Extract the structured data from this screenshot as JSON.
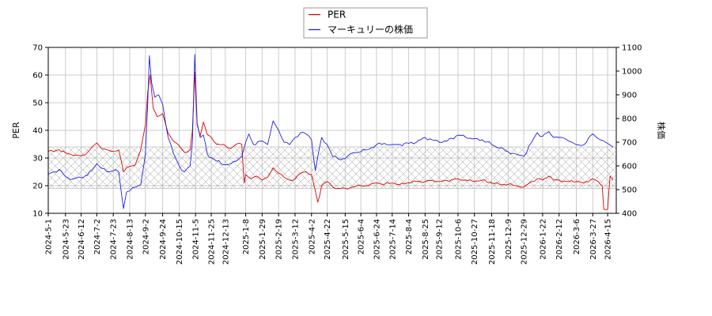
{
  "chart_data": {
    "type": "line",
    "title": "",
    "grid": true,
    "legend_position": "top-center",
    "legend": [
      {
        "label": "PER",
        "color": "#dd0000"
      },
      {
        "label": "マーキュリーの株価",
        "color": "#2222dd"
      }
    ],
    "y_left": {
      "label": "PER",
      "lim": [
        10,
        70
      ],
      "ticks": [
        10,
        20,
        30,
        40,
        50,
        60,
        70
      ]
    },
    "y_right": {
      "label": "株価",
      "lim": [
        400,
        1100
      ],
      "ticks": [
        400,
        500,
        600,
        700,
        800,
        900,
        1000,
        1100
      ]
    },
    "x_range": [
      "2024-05-01",
      "2026-04-26"
    ],
    "x_ticks": [
      "2024-5-1",
      "2024-5-23",
      "2024-6-12",
      "2024-7-2",
      "2024-7-23",
      "2024-8-13",
      "2024-9-2",
      "2024-9-24",
      "2024-10-15",
      "2024-11-5",
      "2024-11-25",
      "2024-12-13",
      "2025-1-8",
      "2025-1-29",
      "2025-2-19",
      "2025-3-12",
      "2025-4-2",
      "2025-4-22",
      "2025-5-15",
      "2025-6-4",
      "2025-6-24",
      "2025-7-14",
      "2025-8-4",
      "2025-8-25",
      "2025-9-12",
      "2025-10-6",
      "2025-10-27",
      "2025-11-18",
      "2025-12-9",
      "2025-12-29",
      "2026-1-22",
      "2026-2-12",
      "2026-3-6",
      "2026-3-27",
      "2026-4-15"
    ],
    "per_band": {
      "low": 19,
      "high": 34
    },
    "series": [
      {
        "name": "PER",
        "color": "#dd0000",
        "axis": "left",
        "points": [
          [
            "2024-05-01",
            32.5
          ],
          [
            "2024-05-08",
            32.3
          ],
          [
            "2024-05-15",
            33.0
          ],
          [
            "2024-05-23",
            31.8
          ],
          [
            "2024-06-01",
            31.0
          ],
          [
            "2024-06-12",
            30.8
          ],
          [
            "2024-06-20",
            32.0
          ],
          [
            "2024-06-28",
            34.5
          ],
          [
            "2024-07-02",
            35.5
          ],
          [
            "2024-07-08",
            33.5
          ],
          [
            "2024-07-15",
            33.0
          ],
          [
            "2024-07-23",
            32.5
          ],
          [
            "2024-07-30",
            32.8
          ],
          [
            "2024-08-05",
            25.0
          ],
          [
            "2024-08-09",
            26.5
          ],
          [
            "2024-08-13",
            27.0
          ],
          [
            "2024-08-20",
            27.5
          ],
          [
            "2024-08-27",
            33.0
          ],
          [
            "2024-09-02",
            42.0
          ],
          [
            "2024-09-05",
            54.0
          ],
          [
            "2024-09-08",
            60.0
          ],
          [
            "2024-09-12",
            48.0
          ],
          [
            "2024-09-17",
            45.0
          ],
          [
            "2024-09-24",
            46.0
          ],
          [
            "2024-10-01",
            39.0
          ],
          [
            "2024-10-08",
            36.0
          ],
          [
            "2024-10-15",
            34.5
          ],
          [
            "2024-10-22",
            32.0
          ],
          [
            "2024-10-29",
            33.0
          ],
          [
            "2024-11-01",
            40.0
          ],
          [
            "2024-11-04",
            61.0
          ],
          [
            "2024-11-07",
            42.0
          ],
          [
            "2024-11-11",
            38.0
          ],
          [
            "2024-11-15",
            43.0
          ],
          [
            "2024-11-20",
            38.5
          ],
          [
            "2024-11-25",
            37.5
          ],
          [
            "2024-12-02",
            35.0
          ],
          [
            "2024-12-13",
            34.5
          ],
          [
            "2024-12-20",
            33.5
          ],
          [
            "2024-12-27",
            35.0
          ],
          [
            "2025-01-03",
            35.0
          ],
          [
            "2025-01-06",
            21.0
          ],
          [
            "2025-01-08",
            24.0
          ],
          [
            "2025-01-15",
            22.5
          ],
          [
            "2025-01-22",
            23.5
          ],
          [
            "2025-01-29",
            22.0
          ],
          [
            "2025-02-05",
            23.0
          ],
          [
            "2025-02-12",
            26.5
          ],
          [
            "2025-02-19",
            24.5
          ],
          [
            "2025-02-26",
            23.0
          ],
          [
            "2025-03-05",
            22.0
          ],
          [
            "2025-03-12",
            22.5
          ],
          [
            "2025-03-19",
            24.5
          ],
          [
            "2025-03-26",
            25.0
          ],
          [
            "2025-04-02",
            24.0
          ],
          [
            "2025-04-07",
            18.0
          ],
          [
            "2025-04-10",
            14.0
          ],
          [
            "2025-04-15",
            20.0
          ],
          [
            "2025-04-22",
            21.5
          ],
          [
            "2025-04-29",
            19.5
          ],
          [
            "2025-05-06",
            19.0
          ],
          [
            "2025-05-15",
            19.0
          ],
          [
            "2025-05-25",
            19.5
          ],
          [
            "2025-06-04",
            20.0
          ],
          [
            "2025-06-14",
            20.0
          ],
          [
            "2025-06-24",
            21.0
          ],
          [
            "2025-07-04",
            20.5
          ],
          [
            "2025-07-14",
            21.0
          ],
          [
            "2025-07-24",
            20.5
          ],
          [
            "2025-08-04",
            21.0
          ],
          [
            "2025-08-14",
            21.5
          ],
          [
            "2025-08-25",
            21.5
          ],
          [
            "2025-09-03",
            22.0
          ],
          [
            "2025-09-12",
            21.5
          ],
          [
            "2025-09-22",
            21.8
          ],
          [
            "2025-10-06",
            22.5
          ],
          [
            "2025-10-16",
            22.0
          ],
          [
            "2025-10-27",
            21.5
          ],
          [
            "2025-11-06",
            22.0
          ],
          [
            "2025-11-18",
            21.0
          ],
          [
            "2025-11-28",
            20.5
          ],
          [
            "2025-12-09",
            20.5
          ],
          [
            "2025-12-19",
            20.0
          ],
          [
            "2025-12-29",
            19.5
          ],
          [
            "2026-01-08",
            21.5
          ],
          [
            "2026-01-15",
            22.5
          ],
          [
            "2026-01-22",
            22.0
          ],
          [
            "2026-01-30",
            23.5
          ],
          [
            "2026-02-05",
            22.0
          ],
          [
            "2026-02-12",
            22.0
          ],
          [
            "2026-02-22",
            21.5
          ],
          [
            "2026-03-06",
            21.5
          ],
          [
            "2026-03-16",
            21.0
          ],
          [
            "2026-03-27",
            22.5
          ],
          [
            "2026-04-03",
            21.5
          ],
          [
            "2026-04-08",
            20.0
          ],
          [
            "2026-04-10",
            11.5
          ],
          [
            "2026-04-15",
            11.5
          ],
          [
            "2026-04-18",
            23.5
          ],
          [
            "2026-04-22",
            22.0
          ]
        ]
      },
      {
        "name": "マーキュリーの株価",
        "color": "#2222dd",
        "axis": "right",
        "points": [
          [
            "2024-05-01",
            565
          ],
          [
            "2024-05-08",
            575
          ],
          [
            "2024-05-15",
            585
          ],
          [
            "2024-05-23",
            555
          ],
          [
            "2024-06-01",
            545
          ],
          [
            "2024-06-12",
            550
          ],
          [
            "2024-06-20",
            560
          ],
          [
            "2024-06-28",
            590
          ],
          [
            "2024-07-02",
            610
          ],
          [
            "2024-07-08",
            590
          ],
          [
            "2024-07-15",
            575
          ],
          [
            "2024-07-23",
            580
          ],
          [
            "2024-07-30",
            575
          ],
          [
            "2024-08-05",
            420
          ],
          [
            "2024-08-09",
            490
          ],
          [
            "2024-08-13",
            495
          ],
          [
            "2024-08-20",
            510
          ],
          [
            "2024-08-27",
            520
          ],
          [
            "2024-09-02",
            650
          ],
          [
            "2024-09-05",
            870
          ],
          [
            "2024-09-07",
            1065
          ],
          [
            "2024-09-10",
            950
          ],
          [
            "2024-09-14",
            890
          ],
          [
            "2024-09-19",
            900
          ],
          [
            "2024-09-24",
            860
          ],
          [
            "2024-10-01",
            720
          ],
          [
            "2024-10-08",
            650
          ],
          [
            "2024-10-15",
            600
          ],
          [
            "2024-10-22",
            575
          ],
          [
            "2024-10-29",
            600
          ],
          [
            "2024-11-01",
            700
          ],
          [
            "2024-11-04",
            1070
          ],
          [
            "2024-11-07",
            780
          ],
          [
            "2024-11-11",
            720
          ],
          [
            "2024-11-15",
            730
          ],
          [
            "2024-11-20",
            650
          ],
          [
            "2024-11-25",
            635
          ],
          [
            "2024-12-02",
            620
          ],
          [
            "2024-12-13",
            605
          ],
          [
            "2024-12-20",
            610
          ],
          [
            "2024-12-27",
            620
          ],
          [
            "2025-01-03",
            640
          ],
          [
            "2025-01-08",
            700
          ],
          [
            "2025-01-12",
            735
          ],
          [
            "2025-01-18",
            690
          ],
          [
            "2025-01-29",
            705
          ],
          [
            "2025-02-05",
            690
          ],
          [
            "2025-02-12",
            790
          ],
          [
            "2025-02-19",
            750
          ],
          [
            "2025-02-26",
            700
          ],
          [
            "2025-03-05",
            690
          ],
          [
            "2025-03-12",
            720
          ],
          [
            "2025-03-19",
            740
          ],
          [
            "2025-03-26",
            735
          ],
          [
            "2025-04-02",
            710
          ],
          [
            "2025-04-07",
            580
          ],
          [
            "2025-04-10",
            640
          ],
          [
            "2025-04-15",
            720
          ],
          [
            "2025-04-22",
            690
          ],
          [
            "2025-04-29",
            640
          ],
          [
            "2025-05-06",
            630
          ],
          [
            "2025-05-15",
            630
          ],
          [
            "2025-05-25",
            655
          ],
          [
            "2025-06-04",
            660
          ],
          [
            "2025-06-14",
            670
          ],
          [
            "2025-06-24",
            690
          ],
          [
            "2025-07-04",
            695
          ],
          [
            "2025-07-14",
            690
          ],
          [
            "2025-07-24",
            690
          ],
          [
            "2025-08-04",
            695
          ],
          [
            "2025-08-14",
            700
          ],
          [
            "2025-08-25",
            720
          ],
          [
            "2025-09-03",
            710
          ],
          [
            "2025-09-12",
            700
          ],
          [
            "2025-09-22",
            705
          ],
          [
            "2025-10-06",
            730
          ],
          [
            "2025-10-16",
            720
          ],
          [
            "2025-10-27",
            715
          ],
          [
            "2025-11-06",
            710
          ],
          [
            "2025-11-18",
            690
          ],
          [
            "2025-11-28",
            675
          ],
          [
            "2025-12-09",
            660
          ],
          [
            "2025-12-19",
            650
          ],
          [
            "2025-12-29",
            640
          ],
          [
            "2026-01-08",
            700
          ],
          [
            "2026-01-15",
            740
          ],
          [
            "2026-01-22",
            725
          ],
          [
            "2026-01-30",
            745
          ],
          [
            "2026-02-05",
            720
          ],
          [
            "2026-02-12",
            720
          ],
          [
            "2026-02-22",
            710
          ],
          [
            "2026-03-06",
            690
          ],
          [
            "2026-03-16",
            690
          ],
          [
            "2026-03-27",
            735
          ],
          [
            "2026-04-03",
            715
          ],
          [
            "2026-04-10",
            705
          ],
          [
            "2026-04-15",
            695
          ],
          [
            "2026-04-22",
            680
          ]
        ]
      }
    ]
  }
}
